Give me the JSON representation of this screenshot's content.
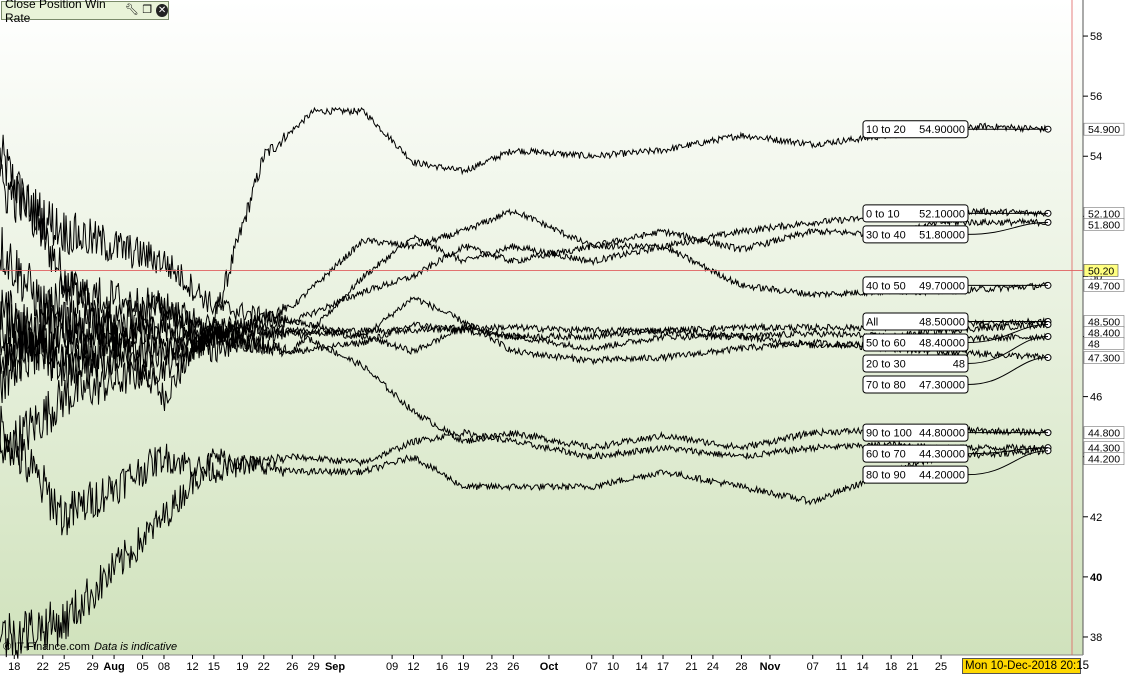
{
  "window": {
    "title": "Close Position Win Rate",
    "icons": [
      "wrench-icon",
      "restore-icon",
      "close-icon"
    ]
  },
  "footer": {
    "copyright": "© IT-Finance.com",
    "disclaimer": "Data is indicative"
  },
  "crosshair": {
    "date_label": "Mon 10-Dec-2018 20:15",
    "price_label": "50.20"
  },
  "colors": {
    "bg_top": "#ffffff",
    "bg_bottom": "#d0e2bc",
    "line": "#000000",
    "crosshair": "#e06060",
    "price_tag": "#ffff80"
  },
  "chart_data": {
    "type": "line",
    "title": "Close Position Win Rate",
    "ylim": [
      37.4,
      59.2
    ],
    "y_ticks": [
      38,
      40,
      42,
      44,
      46,
      48,
      50,
      52,
      54,
      56,
      58
    ],
    "y_tick_labels": [
      "38",
      "40",
      "42",
      "44",
      "46",
      "48",
      "50",
      "52",
      "54",
      "56",
      "58"
    ],
    "x_range": [
      "2018-07-16",
      "2018-12-10"
    ],
    "x_tick_labels": [
      "18",
      "22",
      "25",
      "29",
      "Aug",
      "05",
      "08",
      "12",
      "15",
      "19",
      "22",
      "26",
      "29",
      "Sep",
      "09",
      "12",
      "16",
      "19",
      "23",
      "26",
      "Oct",
      "07",
      "10",
      "14",
      "17",
      "21",
      "24",
      "28",
      "Nov",
      "07",
      "11",
      "14",
      "18",
      "21",
      "25"
    ],
    "x_tick_dates": [
      "2018-07-18",
      "2018-07-22",
      "2018-07-25",
      "2018-07-29",
      "2018-08-01",
      "2018-08-05",
      "2018-08-08",
      "2018-08-12",
      "2018-08-15",
      "2018-08-19",
      "2018-08-22",
      "2018-08-26",
      "2018-08-29",
      "2018-09-01",
      "2018-09-09",
      "2018-09-12",
      "2018-09-16",
      "2018-09-19",
      "2018-09-23",
      "2018-09-26",
      "2018-10-01",
      "2018-10-07",
      "2018-10-10",
      "2018-10-14",
      "2018-10-17",
      "2018-10-21",
      "2018-10-24",
      "2018-10-28",
      "2018-11-01",
      "2018-11-07",
      "2018-11-11",
      "2018-11-14",
      "2018-11-18",
      "2018-11-21",
      "2018-11-25"
    ],
    "grid": false,
    "crosshair_value": 50.2,
    "series": [
      {
        "name": "10 to 20",
        "label_value": "54.90000",
        "axis_tag": "54.900",
        "last": 54.9,
        "points": [
          [
            "2018-07-16",
            54.0
          ],
          [
            "2018-07-25",
            50.0
          ],
          [
            "2018-08-08",
            46.0
          ],
          [
            "2018-08-15",
            48.5
          ],
          [
            "2018-08-22",
            54.0
          ],
          [
            "2018-08-29",
            55.5
          ],
          [
            "2018-09-05",
            55.5
          ],
          [
            "2018-09-12",
            53.8
          ],
          [
            "2018-09-19",
            53.5
          ],
          [
            "2018-09-26",
            54.2
          ],
          [
            "2018-10-07",
            54.0
          ],
          [
            "2018-10-17",
            54.2
          ],
          [
            "2018-10-28",
            54.7
          ],
          [
            "2018-11-07",
            54.4
          ],
          [
            "2018-11-18",
            54.7
          ],
          [
            "2018-11-25",
            54.8
          ],
          [
            "2018-12-01",
            55.0
          ],
          [
            "2018-12-10",
            54.9
          ]
        ]
      },
      {
        "name": "0 to 10",
        "label_value": "52.10000",
        "axis_tag": "52.100",
        "last": 52.1,
        "points": [
          [
            "2018-07-16",
            44.0
          ],
          [
            "2018-07-25",
            46.0
          ],
          [
            "2018-08-08",
            47.0
          ],
          [
            "2018-08-15",
            48.0
          ],
          [
            "2018-08-26",
            47.5
          ],
          [
            "2018-09-05",
            50.0
          ],
          [
            "2018-09-12",
            51.3
          ],
          [
            "2018-09-19",
            50.5
          ],
          [
            "2018-09-26",
            51.0
          ],
          [
            "2018-10-07",
            50.5
          ],
          [
            "2018-10-17",
            51.0
          ],
          [
            "2018-10-28",
            51.5
          ],
          [
            "2018-11-07",
            51.8
          ],
          [
            "2018-11-18",
            52.0
          ],
          [
            "2018-11-25",
            52.2
          ],
          [
            "2018-12-10",
            52.1
          ]
        ]
      },
      {
        "name": "30 to 40",
        "label_value": "51.80000",
        "axis_tag": "51.800",
        "last": 51.8,
        "points": [
          [
            "2018-07-16",
            51.0
          ],
          [
            "2018-07-25",
            48.0
          ],
          [
            "2018-08-08",
            47.5
          ],
          [
            "2018-08-15",
            48.0
          ],
          [
            "2018-08-26",
            49.0
          ],
          [
            "2018-09-05",
            51.2
          ],
          [
            "2018-09-12",
            51.0
          ],
          [
            "2018-09-19",
            51.5
          ],
          [
            "2018-09-26",
            52.2
          ],
          [
            "2018-10-07",
            51.0
          ],
          [
            "2018-10-17",
            51.5
          ],
          [
            "2018-10-28",
            50.9
          ],
          [
            "2018-11-07",
            51.5
          ],
          [
            "2018-11-18",
            51.4
          ],
          [
            "2018-11-25",
            51.8
          ],
          [
            "2018-12-10",
            51.8
          ]
        ]
      },
      {
        "name": "40 to 50",
        "label_value": "49.70000",
        "axis_tag": "49.700",
        "last": 49.7,
        "points": [
          [
            "2018-07-16",
            53.0
          ],
          [
            "2018-07-25",
            51.5
          ],
          [
            "2018-08-08",
            50.5
          ],
          [
            "2018-08-15",
            49.0
          ],
          [
            "2018-08-26",
            48.5
          ],
          [
            "2018-09-05",
            49.5
          ],
          [
            "2018-09-12",
            50.0
          ],
          [
            "2018-09-19",
            51.0
          ],
          [
            "2018-09-26",
            50.5
          ],
          [
            "2018-10-07",
            51.0
          ],
          [
            "2018-10-17",
            51.0
          ],
          [
            "2018-10-28",
            49.7
          ],
          [
            "2018-11-07",
            49.4
          ],
          [
            "2018-11-18",
            49.5
          ],
          [
            "2018-11-25",
            49.5
          ],
          [
            "2018-12-10",
            49.7
          ]
        ]
      },
      {
        "name": "All",
        "label_value": "48.50000",
        "axis_tag": "48.500",
        "last": 48.5,
        "points": [
          [
            "2018-07-16",
            47.5
          ],
          [
            "2018-07-25",
            48.5
          ],
          [
            "2018-08-08",
            48.2
          ],
          [
            "2018-08-15",
            48.2
          ],
          [
            "2018-08-26",
            48.2
          ],
          [
            "2018-09-05",
            48.2
          ],
          [
            "2018-09-12",
            48.2
          ],
          [
            "2018-09-19",
            48.3
          ],
          [
            "2018-09-26",
            48.3
          ],
          [
            "2018-10-07",
            48.2
          ],
          [
            "2018-10-17",
            48.2
          ],
          [
            "2018-10-28",
            48.3
          ],
          [
            "2018-11-07",
            48.3
          ],
          [
            "2018-11-18",
            48.3
          ],
          [
            "2018-11-25",
            48.4
          ],
          [
            "2018-12-10",
            48.5
          ]
        ]
      },
      {
        "name": "50 to 60",
        "label_value": "48.40000",
        "axis_tag": "48.400",
        "last": 48.4,
        "points": [
          [
            "2018-07-16",
            47.0
          ],
          [
            "2018-07-25",
            48.0
          ],
          [
            "2018-08-08",
            49.0
          ],
          [
            "2018-08-15",
            48.0
          ],
          [
            "2018-08-26",
            48.2
          ],
          [
            "2018-09-05",
            48.0
          ],
          [
            "2018-09-12",
            47.5
          ],
          [
            "2018-09-19",
            48.3
          ],
          [
            "2018-09-26",
            48.0
          ],
          [
            "2018-10-07",
            48.0
          ],
          [
            "2018-10-17",
            48.2
          ],
          [
            "2018-10-28",
            48.0
          ],
          [
            "2018-11-07",
            48.1
          ],
          [
            "2018-11-18",
            48.0
          ],
          [
            "2018-11-25",
            48.2
          ],
          [
            "2018-12-10",
            48.4
          ]
        ]
      },
      {
        "name": "20 to 30",
        "label_value": "48",
        "axis_tag": "48",
        "last": 48.0,
        "points": [
          [
            "2018-07-16",
            48.5
          ],
          [
            "2018-07-25",
            47.0
          ],
          [
            "2018-08-08",
            47.5
          ],
          [
            "2018-08-15",
            48.0
          ],
          [
            "2018-08-26",
            47.5
          ],
          [
            "2018-09-05",
            47.8
          ],
          [
            "2018-09-12",
            48.4
          ],
          [
            "2018-09-19",
            48.2
          ],
          [
            "2018-09-26",
            48.0
          ],
          [
            "2018-10-07",
            47.6
          ],
          [
            "2018-10-17",
            48.0
          ],
          [
            "2018-10-28",
            48.0
          ],
          [
            "2018-11-07",
            47.7
          ],
          [
            "2018-11-18",
            47.8
          ],
          [
            "2018-11-25",
            47.9
          ],
          [
            "2018-12-10",
            48.0
          ]
        ]
      },
      {
        "name": "70 to 80",
        "label_value": "47.30000",
        "axis_tag": "47.300",
        "last": 47.3,
        "points": [
          [
            "2018-07-16",
            46.5
          ],
          [
            "2018-07-25",
            49.5
          ],
          [
            "2018-08-08",
            49.0
          ],
          [
            "2018-08-15",
            48.3
          ],
          [
            "2018-08-26",
            48.5
          ],
          [
            "2018-09-05",
            48.0
          ],
          [
            "2018-09-12",
            49.3
          ],
          [
            "2018-09-19",
            48.5
          ],
          [
            "2018-09-26",
            47.5
          ],
          [
            "2018-10-07",
            47.2
          ],
          [
            "2018-10-17",
            47.3
          ],
          [
            "2018-10-28",
            47.6
          ],
          [
            "2018-11-07",
            47.8
          ],
          [
            "2018-11-18",
            47.6
          ],
          [
            "2018-11-25",
            47.5
          ],
          [
            "2018-12-10",
            47.3
          ]
        ]
      },
      {
        "name": "90 to 100",
        "label_value": "44.80000",
        "axis_tag": "44.800",
        "last": 44.8,
        "points": [
          [
            "2018-07-16",
            49.0
          ],
          [
            "2018-07-25",
            47.0
          ],
          [
            "2018-08-08",
            48.5
          ],
          [
            "2018-08-15",
            47.5
          ],
          [
            "2018-08-26",
            48.2
          ],
          [
            "2018-09-05",
            47.0
          ],
          [
            "2018-09-12",
            45.5
          ],
          [
            "2018-09-19",
            44.5
          ],
          [
            "2018-09-26",
            44.8
          ],
          [
            "2018-10-07",
            44.3
          ],
          [
            "2018-10-17",
            44.7
          ],
          [
            "2018-10-28",
            44.3
          ],
          [
            "2018-11-07",
            44.8
          ],
          [
            "2018-11-18",
            44.9
          ],
          [
            "2018-11-25",
            44.9
          ],
          [
            "2018-12-10",
            44.8
          ]
        ]
      },
      {
        "name": "60 to 70",
        "label_value": "44.30000",
        "axis_tag": "44.300",
        "last": 44.3,
        "points": [
          [
            "2018-07-16",
            45.0
          ],
          [
            "2018-07-25",
            42.0
          ],
          [
            "2018-08-08",
            44.0
          ],
          [
            "2018-08-15",
            43.5
          ],
          [
            "2018-08-26",
            44.0
          ],
          [
            "2018-09-05",
            43.8
          ],
          [
            "2018-09-12",
            44.5
          ],
          [
            "2018-09-19",
            44.8
          ],
          [
            "2018-09-26",
            44.5
          ],
          [
            "2018-10-07",
            44.0
          ],
          [
            "2018-10-17",
            44.3
          ],
          [
            "2018-10-28",
            44.0
          ],
          [
            "2018-11-07",
            44.3
          ],
          [
            "2018-11-18",
            44.4
          ],
          [
            "2018-11-25",
            44.3
          ],
          [
            "2018-12-10",
            44.3
          ]
        ]
      },
      {
        "name": "80 to 90",
        "label_value": "44.20000",
        "axis_tag": "44.200",
        "last": 44.2,
        "points": [
          [
            "2018-07-16",
            38.0
          ],
          [
            "2018-07-25",
            38.5
          ],
          [
            "2018-08-08",
            42.0
          ],
          [
            "2018-08-15",
            44.0
          ],
          [
            "2018-08-26",
            43.5
          ],
          [
            "2018-09-05",
            43.5
          ],
          [
            "2018-09-12",
            44.0
          ],
          [
            "2018-09-19",
            43.0
          ],
          [
            "2018-09-26",
            43.0
          ],
          [
            "2018-10-07",
            43.0
          ],
          [
            "2018-10-17",
            43.5
          ],
          [
            "2018-10-28",
            43.0
          ],
          [
            "2018-11-07",
            42.5
          ],
          [
            "2018-11-18",
            43.5
          ],
          [
            "2018-11-25",
            44.0
          ],
          [
            "2018-12-10",
            44.2
          ]
        ]
      }
    ]
  }
}
